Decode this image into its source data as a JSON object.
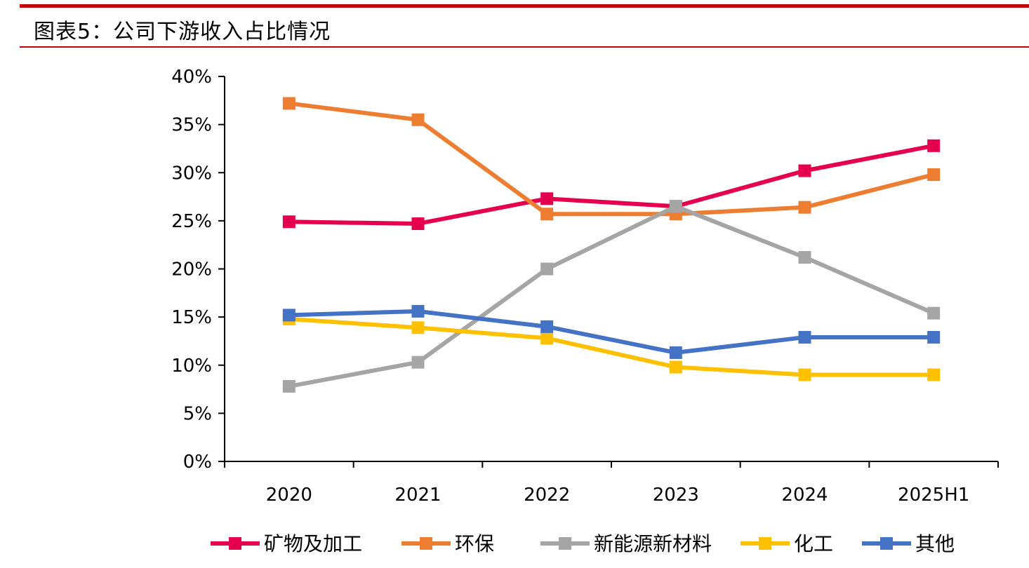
{
  "title": "图表5：公司下游收入占比情况",
  "chart_data": {
    "type": "line",
    "title": "",
    "xlabel": "",
    "ylabel": "",
    "categories": [
      "2020",
      "2021",
      "2022",
      "2023",
      "2024",
      "2025H1"
    ],
    "ylim": [
      0,
      40
    ],
    "yticks": [
      0,
      5,
      10,
      15,
      20,
      25,
      30,
      35,
      40
    ],
    "ytick_labels": [
      "0%",
      "5%",
      "10%",
      "15%",
      "20%",
      "25%",
      "30%",
      "35%",
      "40%"
    ],
    "grid": false,
    "legend_position": "bottom",
    "series": [
      {
        "name": "矿物及加工",
        "color": "#e4004f",
        "values": [
          24.9,
          24.7,
          27.3,
          26.5,
          30.2,
          32.8
        ]
      },
      {
        "name": "环保",
        "color": "#ed7d31",
        "values": [
          37.2,
          35.5,
          25.7,
          25.7,
          26.4,
          29.8
        ]
      },
      {
        "name": "新能源新材料",
        "color": "#a5a5a5",
        "values": [
          7.8,
          10.3,
          20.0,
          26.5,
          21.2,
          15.4
        ]
      },
      {
        "name": "化工",
        "color": "#ffc000",
        "values": [
          14.8,
          13.9,
          12.8,
          9.8,
          9.0,
          9.0
        ]
      },
      {
        "name": "其他",
        "color": "#4472c4",
        "values": [
          15.2,
          15.6,
          14.0,
          11.3,
          12.9,
          12.9
        ]
      }
    ]
  }
}
